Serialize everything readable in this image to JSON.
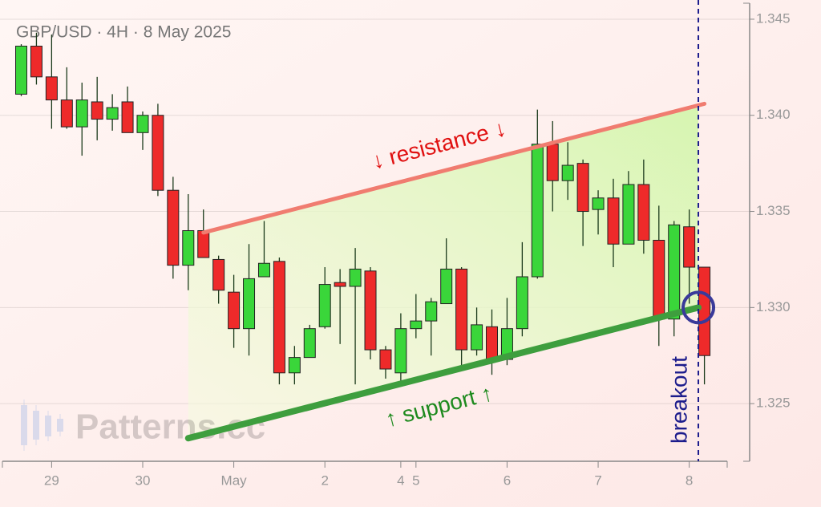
{
  "chart_data": {
    "type": "candlestick",
    "title": "GBP/USD · 4H · 8 May 2025",
    "watermark": "Patterns.cc",
    "up_color": "#3ad63a",
    "down_color": "#ee2a2a",
    "open": [
      1.3411,
      1.3436,
      1.342,
      1.3408,
      1.3394,
      1.3407,
      1.3398,
      1.3407,
      1.3391,
      1.34,
      1.3361,
      1.3322,
      1.334,
      1.3325,
      1.3308,
      1.3289,
      1.3316,
      1.3324,
      1.3266,
      1.3274,
      1.329,
      1.3313,
      1.3311,
      1.3319,
      1.3278,
      1.3266,
      1.3289,
      1.3293,
      1.3302,
      1.332,
      1.3278,
      1.329,
      1.3273,
      1.3289,
      1.3316,
      1.3385,
      1.3366,
      1.3375,
      1.3351,
      1.3357,
      1.3333,
      1.3364,
      1.3335,
      1.3294,
      1.3342,
      1.3321
    ],
    "high": [
      1.3437,
      1.3443,
      1.3442,
      1.3425,
      1.3417,
      1.342,
      1.3411,
      1.3415,
      1.3402,
      1.3406,
      1.3368,
      1.3359,
      1.3351,
      1.3327,
      1.3317,
      1.3333,
      1.3345,
      1.3326,
      1.328,
      1.3291,
      1.3321,
      1.332,
      1.3331,
      1.3321,
      1.328,
      1.3297,
      1.3307,
      1.3305,
      1.3336,
      1.3321,
      1.33,
      1.3299,
      1.3305,
      1.3334,
      1.3403,
      1.3397,
      1.3386,
      1.3377,
      1.3361,
      1.3367,
      1.3371,
      1.3377,
      1.3353,
      1.3345,
      1.3351,
      1.3321
    ],
    "low": [
      1.341,
      1.3416,
      1.3393,
      1.3393,
      1.3379,
      1.3387,
      1.3392,
      1.3391,
      1.3382,
      1.3358,
      1.3315,
      1.3309,
      1.3326,
      1.3302,
      1.3279,
      1.3275,
      1.3316,
      1.326,
      1.326,
      1.3274,
      1.3289,
      1.3281,
      1.326,
      1.3273,
      1.3263,
      1.326,
      1.3284,
      1.3275,
      1.3302,
      1.3269,
      1.3275,
      1.3265,
      1.327,
      1.3285,
      1.3315,
      1.335,
      1.3356,
      1.3332,
      1.3338,
      1.3321,
      1.3333,
      1.3328,
      1.328,
      1.3285,
      1.3302,
      1.326
    ],
    "close": [
      1.3436,
      1.342,
      1.3408,
      1.3394,
      1.3408,
      1.3398,
      1.3404,
      1.3391,
      1.34,
      1.3361,
      1.3322,
      1.334,
      1.3326,
      1.3309,
      1.3289,
      1.3315,
      1.3323,
      1.3266,
      1.3274,
      1.3289,
      1.3312,
      1.3311,
      1.332,
      1.3278,
      1.3268,
      1.3289,
      1.3293,
      1.3303,
      1.332,
      1.3278,
      1.3291,
      1.3273,
      1.3289,
      1.3316,
      1.3385,
      1.3366,
      1.3374,
      1.335,
      1.3357,
      1.3333,
      1.3364,
      1.3335,
      1.3294,
      1.3343,
      1.3321,
      1.3275
    ],
    "xlim": [
      -1.4,
      46.5
    ],
    "xticks": [
      {
        "value": 2,
        "label": "29"
      },
      {
        "value": 8,
        "label": "30"
      },
      {
        "value": 14,
        "label": "May"
      },
      {
        "value": 20,
        "label": "2"
      },
      {
        "value": 25,
        "label": "4"
      },
      {
        "value": 26,
        "label": "5"
      },
      {
        "value": 32,
        "label": "6"
      },
      {
        "value": 38,
        "label": "7"
      },
      {
        "value": 44,
        "label": "8"
      }
    ],
    "ylim": [
      1.322,
      1.346
    ],
    "yticks": [
      1.325,
      {
        "value": 1.33,
        "label": "1.330"
      },
      1.335,
      {
        "value": 1.34,
        "label": "1.340"
      },
      1.345
    ],
    "grid": true,
    "annotations": {
      "resistance": {
        "text": "↓ resistance ↓",
        "start": [
          12,
          1.3339
        ],
        "end": [
          45,
          1.3406
        ],
        "color": "#f07c70"
      },
      "support": {
        "text": "↑ support ↑",
        "start": [
          11,
          1.3232
        ],
        "end": [
          44.6,
          1.33
        ],
        "color": "#3e9e3e"
      },
      "breakout": {
        "text": "breakout",
        "x": 44.6,
        "color": "#1c1c8c"
      }
    }
  }
}
